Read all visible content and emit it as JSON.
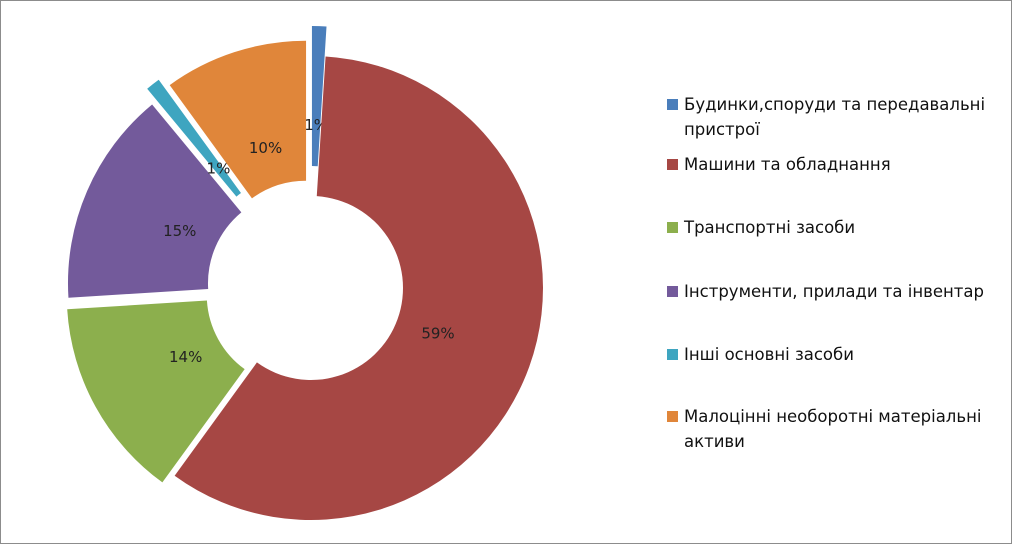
{
  "chart_data": {
    "type": "donut",
    "title": "",
    "series": [
      {
        "label": "Будинки,споруди та передавальні пристрої",
        "value": 1,
        "display": "1%",
        "color": "#4a7ebb"
      },
      {
        "label": "Машини та обладнання",
        "value": 59,
        "display": "59%",
        "color": "#a64744"
      },
      {
        "label": "Транспортні засоби",
        "value": 14,
        "display": "14%",
        "color": "#8caf4d"
      },
      {
        "label": "Інструменти, прилади та інвентар",
        "value": 15,
        "display": "15%",
        "color": "#735a9b"
      },
      {
        "label": "Інші основні засоби",
        "value": 1,
        "display": "1%",
        "color": "#3ea5c0"
      },
      {
        "label": "Малоцінні необоротні матеріальні активи",
        "value": 10,
        "display": "10%",
        "color": "#e0863a"
      }
    ],
    "legend_position": "right",
    "exploded": true
  }
}
